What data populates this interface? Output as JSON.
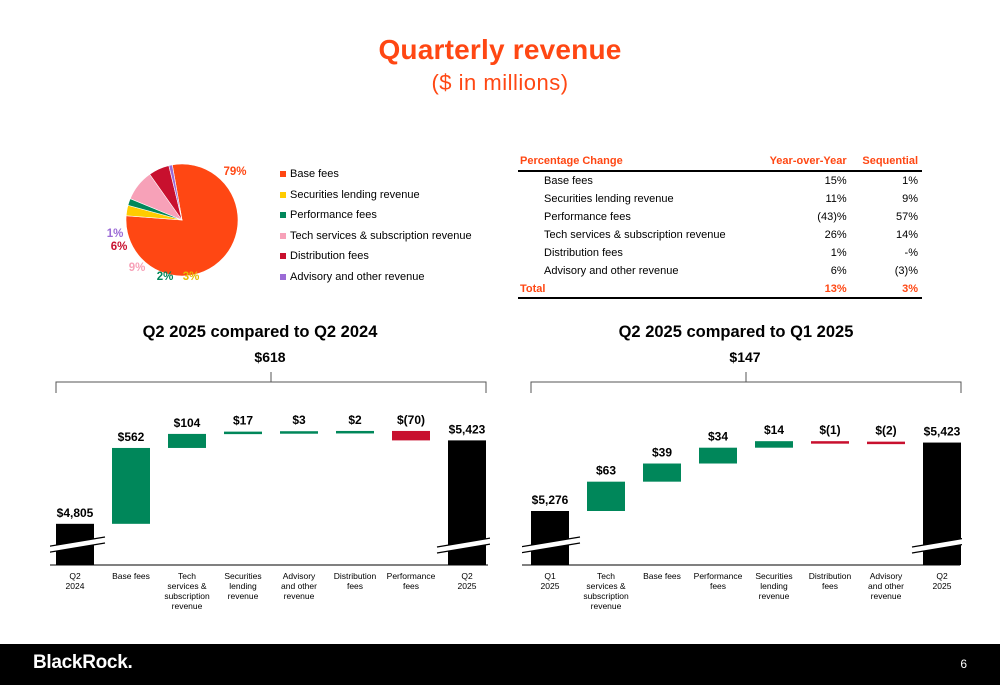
{
  "title": "Quarterly revenue",
  "subtitle": "($ in millions)",
  "colors": {
    "accent": "#ff4713",
    "green": "#00875a",
    "red": "#c8102e",
    "black": "#000000",
    "base_fees": "#ff4713",
    "securities_lending": "#ffcc00",
    "performance": "#00875a",
    "tech": "#f7a1b8",
    "distribution": "#c8102e",
    "advisory": "#9b6bd6"
  },
  "pie": {
    "legend": [
      "Base fees",
      "Securities lending revenue",
      "Performance fees",
      "Tech services & subscription revenue",
      "Distribution fees",
      "Advisory and other revenue"
    ],
    "labels": [
      "79%",
      "3%",
      "2%",
      "9%",
      "6%",
      "1%"
    ]
  },
  "table": {
    "headers": [
      "Percentage Change",
      "Year-over-Year",
      "Sequential"
    ],
    "rows": [
      [
        "Base fees",
        "15%",
        "1%"
      ],
      [
        "Securities lending revenue",
        "11%",
        "9%"
      ],
      [
        "Performance fees",
        "(43)%",
        "57%"
      ],
      [
        "Tech services & subscription revenue",
        "26%",
        "14%"
      ],
      [
        "Distribution fees",
        "1%",
        "-%"
      ],
      [
        "Advisory and other revenue",
        "6%",
        "(3)%"
      ]
    ],
    "total": [
      "Total",
      "13%",
      "3%"
    ]
  },
  "footer": {
    "logo": "BlackRock.",
    "page_number": "6"
  },
  "chart_data": [
    {
      "type": "waterfall",
      "title": "Q2 2025 compared to Q2 2024",
      "total_change": "$618",
      "categories": [
        "Q2\n2024",
        "Base fees",
        "Tech\nservices &\nsubscription\nrevenue",
        "Securities\nlending\nrevenue",
        "Advisory\nand other\nrevenue",
        "Distribution\nfees",
        "Performance\nfees",
        "Q2\n2025"
      ],
      "values": [
        4805,
        562,
        104,
        17,
        3,
        2,
        -70,
        5423
      ],
      "kinds": [
        "total",
        "delta",
        "delta",
        "delta",
        "delta",
        "delta",
        "delta",
        "total"
      ],
      "value_labels": [
        "$4,805",
        "$562",
        "$104",
        "$17",
        "$3",
        "$2",
        "$(70)",
        "$5,423"
      ],
      "y_range": [
        4500,
        5500
      ]
    },
    {
      "type": "waterfall",
      "title": "Q2 2025 compared to Q1 2025",
      "total_change": "$147",
      "categories": [
        "Q1\n2025",
        "Tech\nservices &\nsubscription\nrevenue",
        "Base fees",
        "Performance\nfees",
        "Securities\nlending\nrevenue",
        "Distribution\nfees",
        "Advisory\nand other\nrevenue",
        "Q2\n2025"
      ],
      "values": [
        5276,
        63,
        39,
        34,
        14,
        -1,
        -2,
        5423
      ],
      "kinds": [
        "total",
        "delta",
        "delta",
        "delta",
        "delta",
        "delta",
        "delta",
        "total"
      ],
      "value_labels": [
        "$5,276",
        "$63",
        "$39",
        "$34",
        "$14",
        "$(1)",
        "$(2)",
        "$5,423"
      ],
      "y_range": [
        5160,
        5450
      ]
    },
    {
      "type": "pie",
      "categories": [
        "Base fees",
        "Securities lending revenue",
        "Performance fees",
        "Tech services & subscription revenue",
        "Distribution fees",
        "Advisory and other revenue"
      ],
      "values": [
        79,
        3,
        2,
        9,
        6,
        1
      ]
    }
  ]
}
